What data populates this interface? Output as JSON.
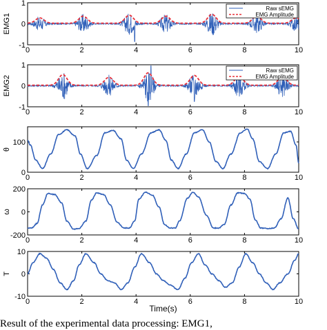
{
  "caption": "Result of the experimental data processing: EMG1,",
  "chart_data": [
    {
      "type": "line",
      "ylabel": "EMG1",
      "xlabel": "",
      "xlim": [
        0,
        10
      ],
      "ylim": [
        -1,
        1
      ],
      "xticks": [
        0,
        2,
        4,
        6,
        8,
        10
      ],
      "yticks": [
        -1,
        0,
        1
      ],
      "legend": {
        "position": "top-right",
        "entries": [
          "Raw sEMG",
          "EMG Amplitude"
        ]
      },
      "bursts": [
        {
          "x": 0.45,
          "amp": 0.3
        },
        {
          "x": 2.05,
          "amp": 0.4
        },
        {
          "x": 3.75,
          "amp": 0.45
        },
        {
          "x": 5.1,
          "amp": 0.4
        },
        {
          "x": 6.8,
          "amp": 0.5
        },
        {
          "x": 8.45,
          "amp": 0.4
        },
        {
          "x": 9.9,
          "amp": 0.3
        }
      ],
      "spikes": [
        {
          "x": 3.95,
          "y": -0.85
        }
      ],
      "series": [
        {
          "name": "Raw sEMG",
          "color": "#2f5fb8",
          "style": "solid"
        },
        {
          "name": "EMG Amplitude",
          "color": "#e8303a",
          "style": "dashed"
        }
      ]
    },
    {
      "type": "line",
      "ylabel": "EMG2",
      "xlabel": "",
      "xlim": [
        0,
        10
      ],
      "ylim": [
        -1,
        1
      ],
      "xticks": [
        0,
        2,
        4,
        6,
        8,
        10
      ],
      "yticks": [
        -1,
        0,
        1
      ],
      "legend": {
        "position": "top-right",
        "entries": [
          "Raw sEMG",
          "EMG Amplitude"
        ]
      },
      "bursts": [
        {
          "x": 1.3,
          "amp": 0.6
        },
        {
          "x": 3.0,
          "amp": 0.45
        },
        {
          "x": 4.45,
          "amp": 0.7
        },
        {
          "x": 6.15,
          "amp": 0.55
        },
        {
          "x": 7.8,
          "amp": 0.5
        },
        {
          "x": 9.4,
          "amp": 0.5
        }
      ],
      "spikes": [
        {
          "x": 4.55,
          "y": 0.95
        },
        {
          "x": 4.45,
          "y": -0.95
        },
        {
          "x": 6.15,
          "y": -0.75
        }
      ],
      "series": [
        {
          "name": "Raw sEMG",
          "color": "#2f5fb8",
          "style": "solid"
        },
        {
          "name": "EMG Amplitude",
          "color": "#e8303a",
          "style": "dashed"
        }
      ]
    },
    {
      "type": "line",
      "ylabel": "θ",
      "xlabel": "",
      "xlim": [
        0,
        10
      ],
      "ylim": [
        0,
        150
      ],
      "xticks": [
        0,
        2,
        4,
        6,
        8,
        10
      ],
      "yticks": [
        0,
        100
      ],
      "series": [
        {
          "color": "#2f5fb8",
          "x": [
            0,
            0.1,
            0.3,
            0.55,
            0.85,
            1.15,
            1.45,
            1.75,
            1.95,
            2.2,
            2.55,
            2.85,
            3.15,
            3.45,
            3.65,
            3.9,
            4.2,
            4.55,
            4.85,
            5.1,
            5.3,
            5.55,
            5.85,
            6.15,
            6.45,
            6.7,
            6.95,
            7.2,
            7.5,
            7.85,
            8.1,
            8.3,
            8.55,
            8.85,
            9.15,
            9.45,
            9.7,
            9.9,
            10
          ],
          "values": [
            105,
            90,
            40,
            12,
            60,
            125,
            140,
            120,
            60,
            12,
            55,
            130,
            138,
            110,
            40,
            12,
            60,
            130,
            140,
            105,
            40,
            12,
            60,
            130,
            140,
            100,
            35,
            12,
            60,
            130,
            143,
            110,
            35,
            12,
            60,
            130,
            135,
            90,
            30
          ]
        }
      ]
    },
    {
      "type": "line",
      "ylabel": "ω",
      "xlabel": "",
      "xlim": [
        0,
        10
      ],
      "ylim": [
        -200,
        200
      ],
      "xticks": [
        0,
        2,
        4,
        6,
        8,
        10
      ],
      "yticks": [
        -200,
        0,
        200
      ],
      "series": [
        {
          "color": "#2f5fb8",
          "x": [
            0,
            0.15,
            0.35,
            0.55,
            0.75,
            1.0,
            1.25,
            1.45,
            1.7,
            1.9,
            2.15,
            2.35,
            2.55,
            2.8,
            3.05,
            3.3,
            3.55,
            3.75,
            3.95,
            4.1,
            4.35,
            4.6,
            4.85,
            5.05,
            5.25,
            5.45,
            5.6,
            5.9,
            6.1,
            6.3,
            6.6,
            6.85,
            7.05,
            7.25,
            7.5,
            7.75,
            8.0,
            8.2,
            8.4,
            8.6,
            8.9,
            9.1,
            9.35,
            9.6,
            9.8,
            10
          ],
          "values": [
            -140,
            -140,
            -100,
            60,
            160,
            150,
            80,
            -80,
            -150,
            -145,
            -80,
            100,
            165,
            150,
            60,
            -90,
            -140,
            -140,
            -80,
            110,
            170,
            145,
            40,
            -110,
            -140,
            -140,
            -80,
            120,
            170,
            130,
            -30,
            -140,
            -140,
            -110,
            60,
            165,
            160,
            110,
            -70,
            -140,
            -145,
            -140,
            -60,
            120,
            -60,
            -150
          ]
        }
      ]
    },
    {
      "type": "line",
      "ylabel": "T",
      "xlabel": "Time(s)",
      "xlim": [
        0,
        10
      ],
      "ylim": [
        -10,
        10
      ],
      "xticks": [
        0,
        2,
        4,
        6,
        8,
        10
      ],
      "yticks": [
        -10,
        0,
        10
      ],
      "series": [
        {
          "color": "#2f5fb8",
          "x": [
            0,
            0.2,
            0.45,
            0.7,
            0.95,
            1.2,
            1.45,
            1.7,
            1.9,
            2.15,
            2.45,
            2.7,
            2.95,
            3.2,
            3.45,
            3.7,
            3.95,
            4.2,
            4.5,
            4.75,
            5.0,
            5.25,
            5.55,
            5.8,
            6.05,
            6.3,
            6.55,
            6.8,
            7.05,
            7.3,
            7.55,
            7.8,
            8.05,
            8.3,
            8.55,
            8.8,
            9.05,
            9.3,
            9.6,
            9.85,
            10
          ],
          "values": [
            0,
            5,
            9,
            7,
            2,
            -4,
            -7,
            -3,
            4,
            9,
            5,
            0,
            -3,
            -4,
            -7,
            -4,
            3,
            9,
            5,
            0,
            -3,
            -5,
            -7,
            -2,
            5,
            9,
            4,
            0,
            -3,
            -6,
            -4,
            3,
            9,
            5,
            0,
            -4,
            -7,
            -4,
            0,
            6,
            9
          ]
        }
      ]
    }
  ]
}
